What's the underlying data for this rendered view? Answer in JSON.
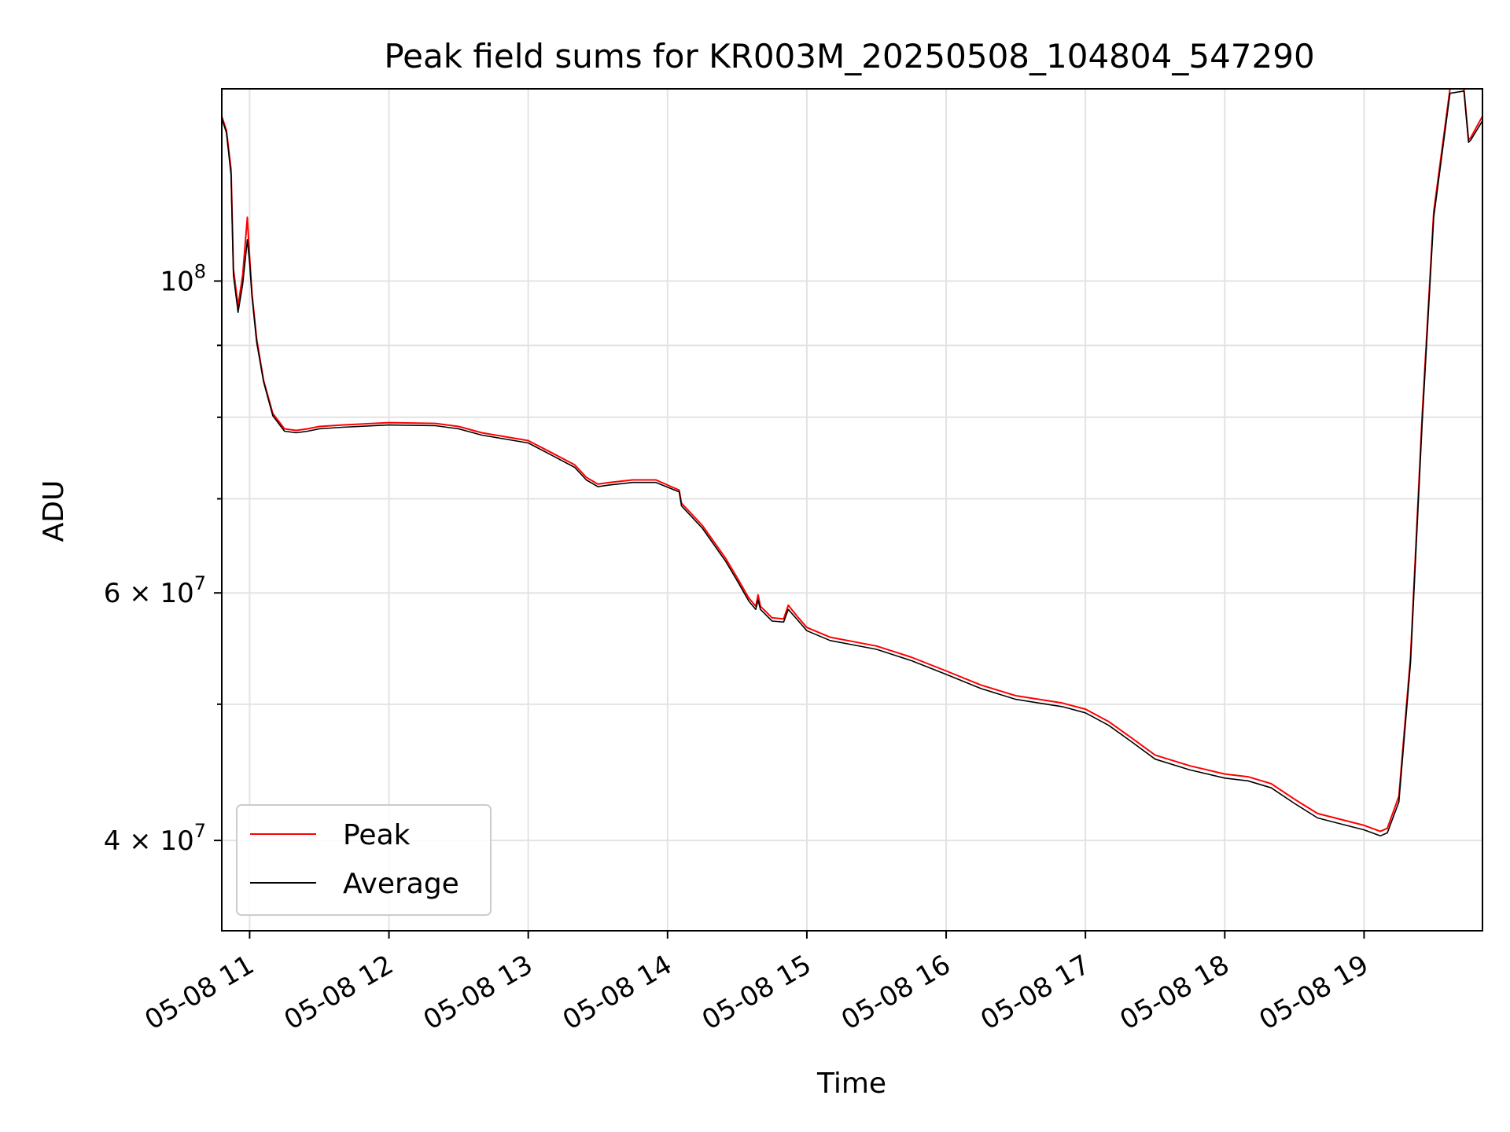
{
  "chart_data": {
    "type": "line",
    "title": "Peak field sums for KR003M_20250508_104804_547290",
    "xlabel": "Time",
    "ylabel": "ADU",
    "yscale": "log",
    "grid": true,
    "legend_position": "lower-left",
    "xlim": [
      "2025-05-08 10:48",
      "2025-05-08 19:51"
    ],
    "ylim": [
      34500000,
      137000000
    ],
    "x_ticks": [
      {
        "t": "2025-05-08 11:00",
        "label": "05-08 11"
      },
      {
        "t": "2025-05-08 12:00",
        "label": "05-08 12"
      },
      {
        "t": "2025-05-08 13:00",
        "label": "05-08 13"
      },
      {
        "t": "2025-05-08 14:00",
        "label": "05-08 14"
      },
      {
        "t": "2025-05-08 15:00",
        "label": "05-08 15"
      },
      {
        "t": "2025-05-08 16:00",
        "label": "05-08 16"
      },
      {
        "t": "2025-05-08 17:00",
        "label": "05-08 17"
      },
      {
        "t": "2025-05-08 18:00",
        "label": "05-08 18"
      },
      {
        "t": "2025-05-08 19:00",
        "label": "05-08 19"
      }
    ],
    "y_ticks": [
      {
        "v": 100000000,
        "base": "10",
        "exp": "8"
      },
      {
        "v": 60000000,
        "base": "6 × 10",
        "exp": "7"
      },
      {
        "v": 40000000,
        "base": "4 × 10",
        "exp": "7"
      }
    ],
    "y_minor_ticks": [
      50000000,
      70000000,
      80000000,
      90000000
    ],
    "series": [
      {
        "name": "Peak",
        "color": "#ff0000",
        "x": [
          "2025-05-08 10:48",
          "2025-05-08 10:50",
          "2025-05-08 10:52",
          "2025-05-08 10:53",
          "2025-05-08 10:55",
          "2025-05-08 10:57",
          "2025-05-08 10:59",
          "2025-05-08 11:00",
          "2025-05-08 11:01",
          "2025-05-08 11:03",
          "2025-05-08 11:06",
          "2025-05-08 11:10",
          "2025-05-08 11:15",
          "2025-05-08 11:20",
          "2025-05-08 11:25",
          "2025-05-08 11:30",
          "2025-05-08 11:40",
          "2025-05-08 12:00",
          "2025-05-08 12:20",
          "2025-05-08 12:30",
          "2025-05-08 12:40",
          "2025-05-08 12:50",
          "2025-05-08 13:00",
          "2025-05-08 13:10",
          "2025-05-08 13:20",
          "2025-05-08 13:25",
          "2025-05-08 13:30",
          "2025-05-08 13:35",
          "2025-05-08 13:45",
          "2025-05-08 13:55",
          "2025-05-08 14:05",
          "2025-05-08 14:06",
          "2025-05-08 14:15",
          "2025-05-08 14:25",
          "2025-05-08 14:30",
          "2025-05-08 14:35",
          "2025-05-08 14:38",
          "2025-05-08 14:39",
          "2025-05-08 14:40",
          "2025-05-08 14:45",
          "2025-05-08 14:50",
          "2025-05-08 14:52",
          "2025-05-08 14:56",
          "2025-05-08 15:00",
          "2025-05-08 15:10",
          "2025-05-08 15:20",
          "2025-05-08 15:30",
          "2025-05-08 15:45",
          "2025-05-08 16:00",
          "2025-05-08 16:15",
          "2025-05-08 16:30",
          "2025-05-08 16:40",
          "2025-05-08 16:50",
          "2025-05-08 17:00",
          "2025-05-08 17:10",
          "2025-05-08 17:20",
          "2025-05-08 17:30",
          "2025-05-08 17:45",
          "2025-05-08 18:00",
          "2025-05-08 18:10",
          "2025-05-08 18:20",
          "2025-05-08 18:30",
          "2025-05-08 18:40",
          "2025-05-08 18:50",
          "2025-05-08 19:00",
          "2025-05-08 19:07",
          "2025-05-08 19:10",
          "2025-05-08 19:15",
          "2025-05-08 19:20",
          "2025-05-08 19:25",
          "2025-05-08 19:30",
          "2025-05-08 19:37",
          "2025-05-08 19:43",
          "2025-05-08 19:45",
          "2025-05-08 19:46",
          "2025-05-08 19:51"
        ],
        "y": [
          131000000,
          128000000,
          120000000,
          102000000,
          96000000,
          101000000,
          111000000,
          104000000,
          98000000,
          91000000,
          85000000,
          80500000,
          78500000,
          78300000,
          78500000,
          78800000,
          79000000,
          79300000,
          79200000,
          78800000,
          78000000,
          77500000,
          77000000,
          75500000,
          74000000,
          72500000,
          71700000,
          71900000,
          72200000,
          72200000,
          71000000,
          69500000,
          67000000,
          63500000,
          61500000,
          59500000,
          58700000,
          59800000,
          58700000,
          57600000,
          57500000,
          58800000,
          57700000,
          56700000,
          55800000,
          55400000,
          55000000,
          54000000,
          52800000,
          51600000,
          50700000,
          50400000,
          50100000,
          49600000,
          48600000,
          47300000,
          46000000,
          45200000,
          44600000,
          44400000,
          43900000,
          42800000,
          41800000,
          41400000,
          41000000,
          40600000,
          40800000,
          43000000,
          54000000,
          80000000,
          112000000,
          137000000,
          137000000,
          126000000,
          126500000,
          131000000
        ]
      },
      {
        "name": "Average",
        "color": "#000000",
        "x": [
          "2025-05-08 10:48",
          "2025-05-08 10:50",
          "2025-05-08 10:52",
          "2025-05-08 10:53",
          "2025-05-08 10:55",
          "2025-05-08 10:57",
          "2025-05-08 10:59",
          "2025-05-08 11:00",
          "2025-05-08 11:01",
          "2025-05-08 11:03",
          "2025-05-08 11:06",
          "2025-05-08 11:10",
          "2025-05-08 11:15",
          "2025-05-08 11:20",
          "2025-05-08 11:25",
          "2025-05-08 11:30",
          "2025-05-08 11:40",
          "2025-05-08 12:00",
          "2025-05-08 12:20",
          "2025-05-08 12:30",
          "2025-05-08 12:40",
          "2025-05-08 12:50",
          "2025-05-08 13:00",
          "2025-05-08 13:10",
          "2025-05-08 13:20",
          "2025-05-08 13:25",
          "2025-05-08 13:30",
          "2025-05-08 13:35",
          "2025-05-08 13:45",
          "2025-05-08 13:55",
          "2025-05-08 14:05",
          "2025-05-08 14:06",
          "2025-05-08 14:15",
          "2025-05-08 14:25",
          "2025-05-08 14:30",
          "2025-05-08 14:35",
          "2025-05-08 14:38",
          "2025-05-08 14:39",
          "2025-05-08 14:40",
          "2025-05-08 14:45",
          "2025-05-08 14:50",
          "2025-05-08 14:52",
          "2025-05-08 14:56",
          "2025-05-08 15:00",
          "2025-05-08 15:10",
          "2025-05-08 15:20",
          "2025-05-08 15:30",
          "2025-05-08 15:45",
          "2025-05-08 16:00",
          "2025-05-08 16:15",
          "2025-05-08 16:30",
          "2025-05-08 16:40",
          "2025-05-08 16:50",
          "2025-05-08 17:00",
          "2025-05-08 17:10",
          "2025-05-08 17:20",
          "2025-05-08 17:30",
          "2025-05-08 17:45",
          "2025-05-08 18:00",
          "2025-05-08 18:10",
          "2025-05-08 18:20",
          "2025-05-08 18:30",
          "2025-05-08 18:40",
          "2025-05-08 18:50",
          "2025-05-08 19:00",
          "2025-05-08 19:07",
          "2025-05-08 19:10",
          "2025-05-08 19:15",
          "2025-05-08 19:20",
          "2025-05-08 19:25",
          "2025-05-08 19:30",
          "2025-05-08 19:37",
          "2025-05-08 19:43",
          "2025-05-08 19:45",
          "2025-05-08 19:46",
          "2025-05-08 19:51"
        ],
        "y": [
          130500000,
          127500000,
          119000000,
          101000000,
          95000000,
          99500000,
          107000000,
          103000000,
          97500000,
          90500000,
          84800000,
          80200000,
          78200000,
          78000000,
          78200000,
          78500000,
          78700000,
          79000000,
          78900000,
          78500000,
          77700000,
          77200000,
          76700000,
          75200000,
          73700000,
          72200000,
          71400000,
          71600000,
          71900000,
          71900000,
          70800000,
          69200000,
          66700000,
          63200000,
          61200000,
          59200000,
          58400000,
          59300000,
          58400000,
          57300000,
          57200000,
          58400000,
          57400000,
          56400000,
          55500000,
          55100000,
          54700000,
          53700000,
          52500000,
          51300000,
          50400000,
          50100000,
          49800000,
          49300000,
          48300000,
          47000000,
          45700000,
          44900000,
          44300000,
          44100000,
          43600000,
          42500000,
          41500000,
          41100000,
          40700000,
          40300000,
          40500000,
          42600000,
          53500000,
          79000000,
          111000000,
          136000000,
          136500000,
          125500000,
          126000000,
          130000000
        ]
      }
    ]
  }
}
